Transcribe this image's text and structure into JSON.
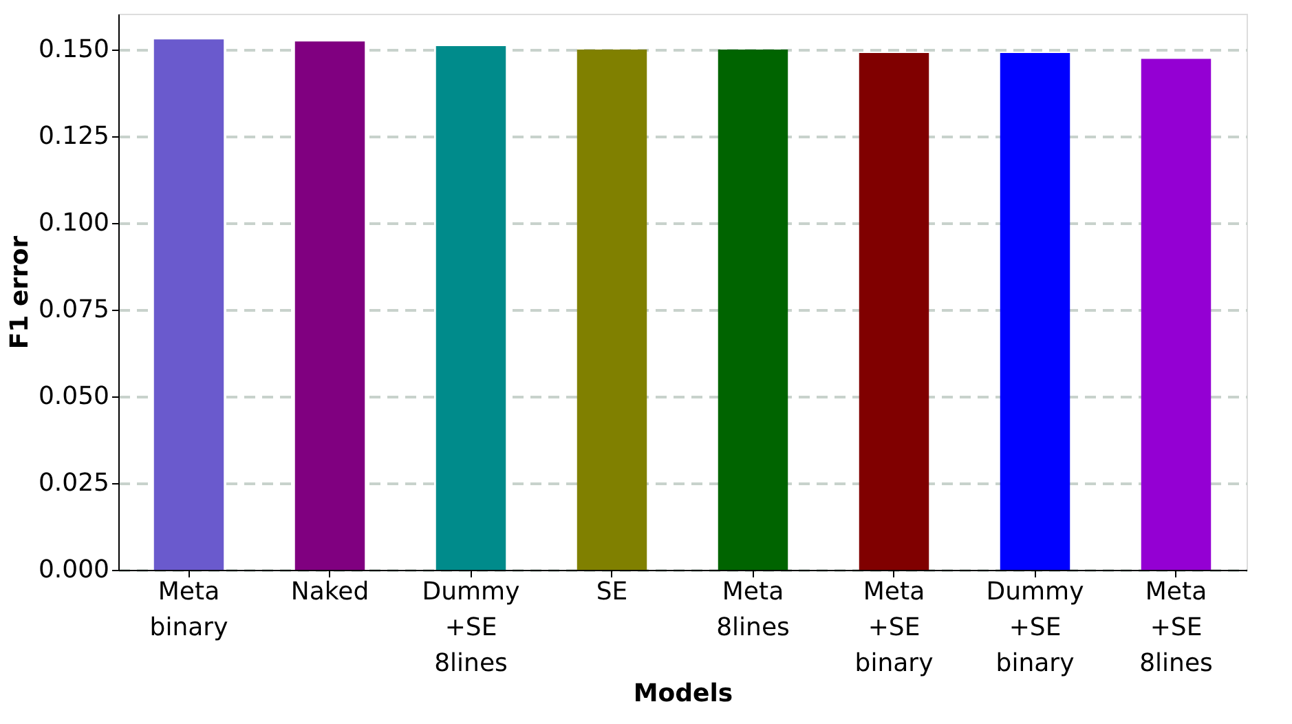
{
  "chart_data": {
    "type": "bar",
    "xlabel": "Models",
    "ylabel": "F1 error",
    "categories": [
      "Meta\nbinary",
      "Naked",
      "Dummy\n+SE\n8lines",
      "SE",
      "Meta\n8lines",
      "Meta\n+SE\nbinary",
      "Dummy\n+SE\nbinary",
      "Meta\n+SE\n8lines"
    ],
    "values": [
      0.1529,
      0.1523,
      0.151,
      0.15,
      0.15,
      0.149,
      0.149,
      0.1473
    ],
    "colors": [
      "#6a5acd",
      "#800080",
      "#008b8b",
      "#808000",
      "#006400",
      "#800000",
      "#0000ff",
      "#9400d3"
    ],
    "ylim": [
      0,
      0.1603
    ],
    "yticks": [
      {
        "value": 0,
        "label": "0.000"
      },
      {
        "value": 0.025,
        "label": "0.025"
      },
      {
        "value": 0.05,
        "label": "0.050"
      },
      {
        "value": 0.075,
        "label": "0.075"
      },
      {
        "value": 0.1,
        "label": "0.100"
      },
      {
        "value": 0.125,
        "label": "0.125"
      },
      {
        "value": 0.15,
        "label": "0.150"
      }
    ],
    "grid": "y"
  }
}
